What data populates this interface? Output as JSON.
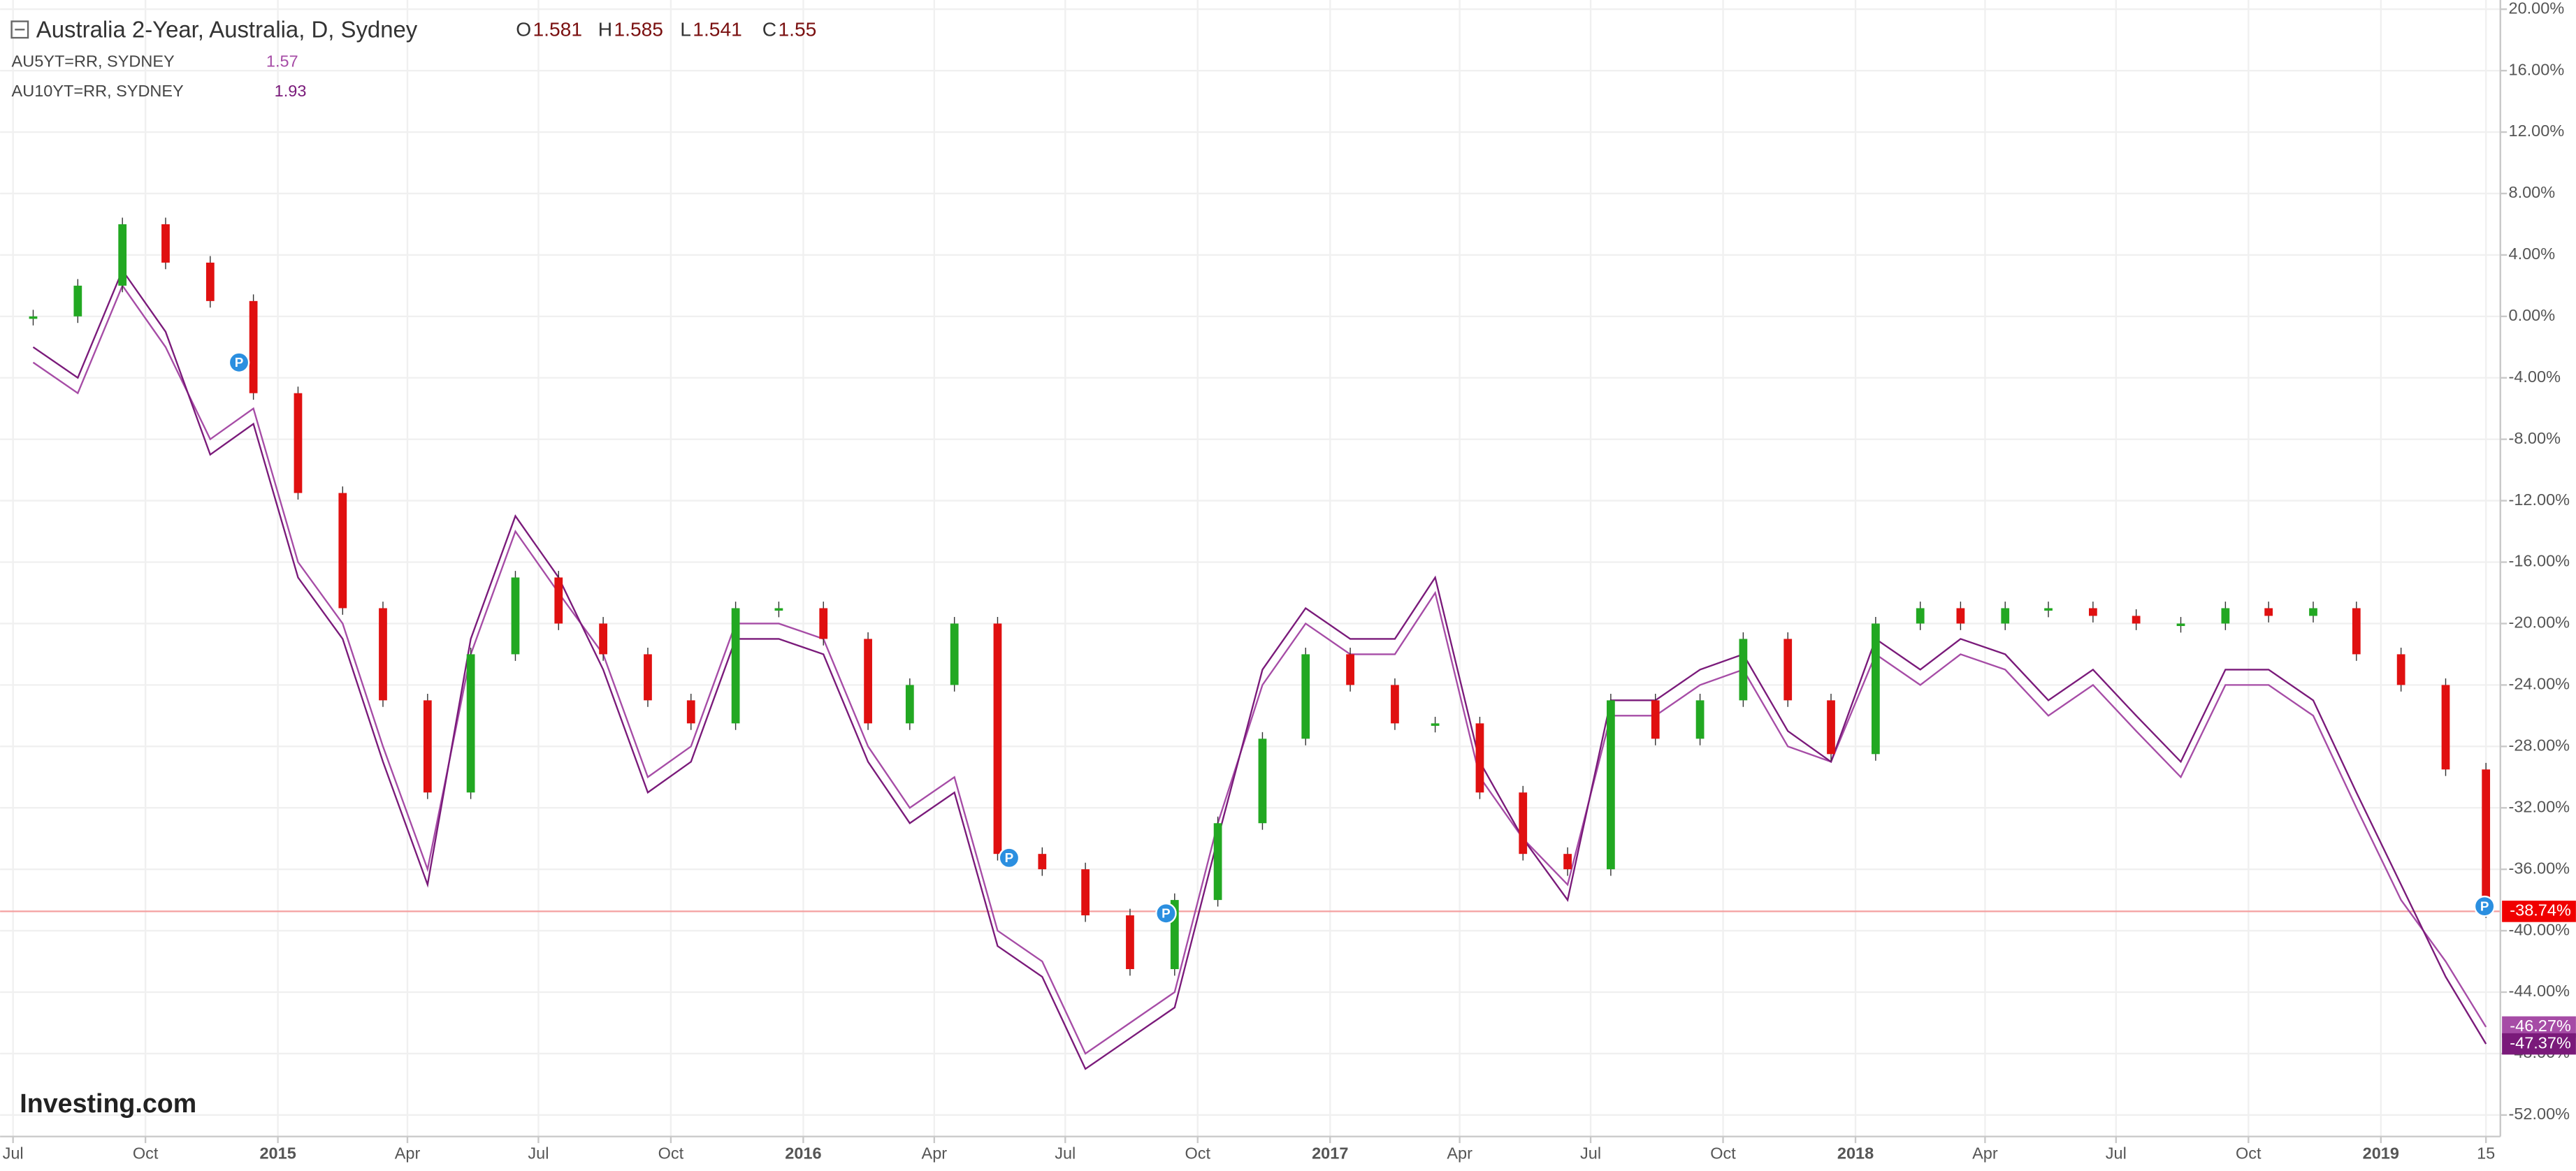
{
  "chart_data": {
    "type": "line",
    "ohlc": [
      {
        "label": "O",
        "value": 1.581
      },
      {
        "label": "H",
        "value": 1.585
      },
      {
        "label": "L",
        "value": 1.541
      },
      {
        "label": "C",
        "value": 1.55
      }
    ],
    "watermark": "Investing.com",
    "x": [
      "2014-07",
      "2014-08",
      "2014-09",
      "2014-10",
      "2014-11",
      "2014-12",
      "2015-01",
      "2015-02",
      "2015-03",
      "2015-04",
      "2015-05",
      "2015-06",
      "2015-07",
      "2015-08",
      "2015-09",
      "2015-10",
      "2015-11",
      "2015-12",
      "2016-01",
      "2016-02",
      "2016-03",
      "2016-04",
      "2016-05",
      "2016-06",
      "2016-07",
      "2016-08",
      "2016-09",
      "2016-10",
      "2016-11",
      "2016-12",
      "2017-01",
      "2017-02",
      "2017-03",
      "2017-04",
      "2017-05",
      "2017-06",
      "2017-07",
      "2017-08",
      "2017-09",
      "2017-10",
      "2017-11",
      "2017-12",
      "2018-01",
      "2018-02",
      "2018-03",
      "2018-04",
      "2018-05",
      "2018-06",
      "2018-07",
      "2018-08",
      "2018-09",
      "2018-10",
      "2018-11",
      "2018-12",
      "2019-01",
      "2019-02",
      "2019-03"
    ],
    "series": [
      {
        "name": "Australia 2-Year, Australia, D, Sydney",
        "color": "#f00000",
        "up_color": "#22a822",
        "down_color": "#e01010",
        "last_label": "-38.74%",
        "values": [
          0,
          2,
          6,
          3.5,
          1,
          -5,
          -11.5,
          -19,
          -25,
          -31,
          -22,
          -17,
          -20,
          -22,
          -25,
          -26.5,
          -19,
          -19,
          -21,
          -26.5,
          -24,
          -20,
          -35,
          -36,
          -39,
          -42.5,
          -38,
          -33,
          -27.5,
          -22,
          -24,
          -26.5,
          -26.5,
          -31,
          -35,
          -36,
          -25,
          -27.5,
          -25,
          -21,
          -25,
          -28.5,
          -20,
          -19,
          -20,
          -19,
          -19,
          -19.5,
          -20,
          -20,
          -19,
          -19.5,
          -19,
          -22,
          -24,
          -29.5,
          -38.74
        ]
      },
      {
        "name": "AU5YT=RR, SYDNEY",
        "color": "#a64ca6",
        "last_price": 1.57,
        "last_label": "-46.27%",
        "values": [
          -3,
          -5,
          2,
          -2,
          -8,
          -6,
          -16,
          -20,
          -28,
          -36,
          -22,
          -14,
          -18,
          -22,
          -30,
          -28,
          -20,
          -20,
          -21,
          -28,
          -32,
          -30,
          -40,
          -42,
          -48,
          -46,
          -44,
          -33,
          -24,
          -20,
          -22,
          -22,
          -18,
          -30,
          -34,
          -37,
          -26,
          -26,
          -24,
          -23,
          -28,
          -29,
          -22,
          -24,
          -22,
          -23,
          -26,
          -24,
          -27,
          -30,
          -24,
          -24,
          -26,
          -32,
          -38,
          -42,
          -46.27
        ]
      },
      {
        "name": "AU10YT=RR, SYDNEY",
        "color": "#7a1a7a",
        "last_price": 1.93,
        "last_label": "-47.37%",
        "values": [
          -2,
          -4,
          3,
          -1,
          -9,
          -7,
          -17,
          -21,
          -29,
          -37,
          -21,
          -13,
          -17,
          -23,
          -31,
          -29,
          -21,
          -21,
          -22,
          -29,
          -33,
          -31,
          -41,
          -43,
          -49,
          -47,
          -45,
          -34,
          -23,
          -19,
          -21,
          -21,
          -17,
          -29,
          -34,
          -38,
          -25,
          -25,
          -23,
          -22,
          -27,
          -29,
          -21,
          -23,
          -21,
          -22,
          -25,
          -23,
          -26,
          -29,
          -23,
          -23,
          -25,
          -31,
          -37,
          -43,
          -47.37
        ]
      }
    ],
    "events": [
      {
        "x": "2014-12-05",
        "label": "P"
      },
      {
        "x": "2016-05-23",
        "label": "P"
      },
      {
        "x": "2016-09-09",
        "label": "P"
      },
      {
        "x": "2019-03-14",
        "label": "P"
      }
    ],
    "xlim": [
      "2014-06-22",
      "2019-03-25"
    ],
    "xticks": [
      {
        "value": "2014-07",
        "label": "Jul"
      },
      {
        "value": "2014-10",
        "label": "Oct"
      },
      {
        "value": "2015-01",
        "label": "2015"
      },
      {
        "value": "2015-04",
        "label": "Apr"
      },
      {
        "value": "2015-07",
        "label": "Jul"
      },
      {
        "value": "2015-10",
        "label": "Oct"
      },
      {
        "value": "2016-01",
        "label": "2016"
      },
      {
        "value": "2016-04",
        "label": "Apr"
      },
      {
        "value": "2016-07",
        "label": "Jul"
      },
      {
        "value": "2016-10",
        "label": "Oct"
      },
      {
        "value": "2017-01",
        "label": "2017"
      },
      {
        "value": "2017-04",
        "label": "Apr"
      },
      {
        "value": "2017-07",
        "label": "Jul"
      },
      {
        "value": "2017-10",
        "label": "Oct"
      },
      {
        "value": "2018-01",
        "label": "2018"
      },
      {
        "value": "2018-04",
        "label": "Apr"
      },
      {
        "value": "2018-07",
        "label": "Jul"
      },
      {
        "value": "2018-10",
        "label": "Oct"
      },
      {
        "value": "2019-01",
        "label": "2019"
      },
      {
        "value": "2019-03-15",
        "label": "15"
      }
    ],
    "ylim": [
      -53.4,
      20.6
    ],
    "yticks": [
      {
        "value": 20,
        "label": "20.00%"
      },
      {
        "value": 16,
        "label": "16.00%"
      },
      {
        "value": 12,
        "label": "12.00%"
      },
      {
        "value": 8,
        "label": "8.00%"
      },
      {
        "value": 4,
        "label": "4.00%"
      },
      {
        "value": 0,
        "label": "0.00%"
      },
      {
        "value": -4,
        "label": "-4.00%"
      },
      {
        "value": -8,
        "label": "-8.00%"
      },
      {
        "value": -12,
        "label": "-12.00%"
      },
      {
        "value": -16,
        "label": "-16.00%"
      },
      {
        "value": -20,
        "label": "-20.00%"
      },
      {
        "value": -24,
        "label": "-24.00%"
      },
      {
        "value": -28,
        "label": "-28.00%"
      },
      {
        "value": -32,
        "label": "-32.00%"
      },
      {
        "value": -36,
        "label": "-36.00%"
      },
      {
        "value": -40,
        "label": "-40.00%"
      },
      {
        "value": -44,
        "label": "-44.00%"
      },
      {
        "value": -48,
        "label": "-48.00%"
      },
      {
        "value": -52,
        "label": "-52.00%"
      }
    ],
    "grid": true
  }
}
